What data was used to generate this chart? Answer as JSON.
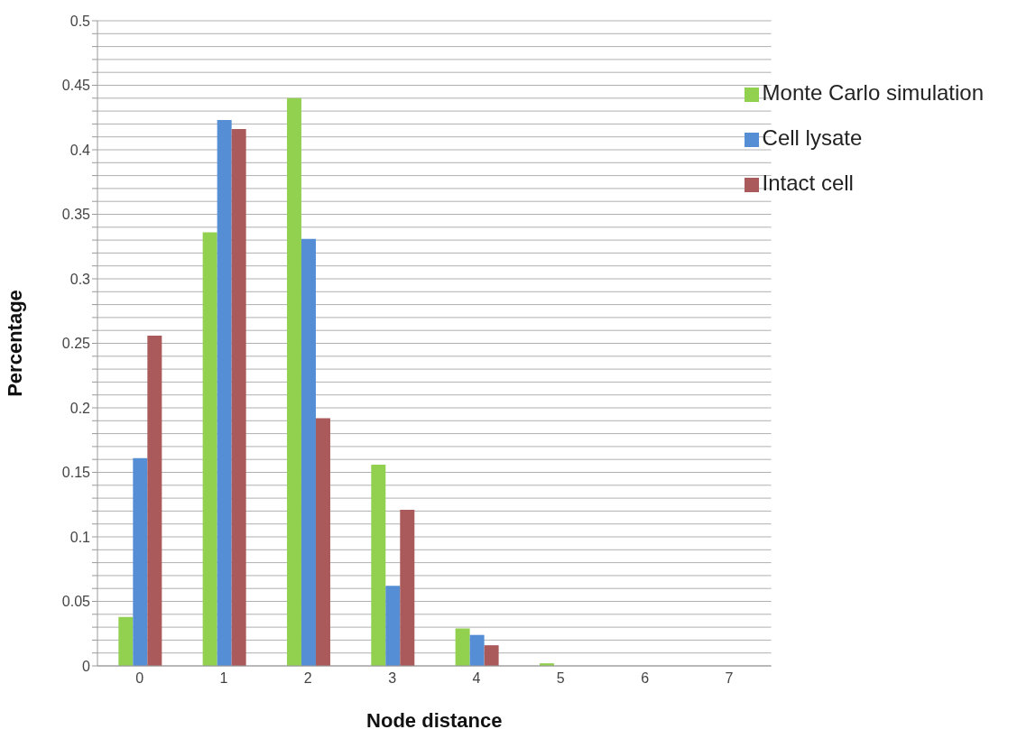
{
  "chart_data": {
    "type": "bar",
    "xlabel": "Node distance",
    "ylabel": "Percentage",
    "categories": [
      "0",
      "1",
      "2",
      "3",
      "4",
      "5",
      "6",
      "7"
    ],
    "series": [
      {
        "name": "Monte Carlo simulation",
        "color": "#92d050",
        "values": [
          0.038,
          0.336,
          0.44,
          0.156,
          0.029,
          0.002,
          0,
          0
        ]
      },
      {
        "name": "Cell lysate",
        "color": "#558ed5",
        "values": [
          0.161,
          0.423,
          0.331,
          0.062,
          0.024,
          0,
          0,
          0
        ]
      },
      {
        "name": "Intact cell",
        "color": "#aa5a5a",
        "values": [
          0.256,
          0.416,
          0.192,
          0.121,
          0.016,
          0,
          0,
          0
        ]
      }
    ],
    "ylim": [
      0,
      0.5
    ],
    "yticks": [
      0,
      {
        "value": 0.01,
        "label": null
      },
      {
        "value": 0.02,
        "label": null
      },
      {
        "value": 0.03,
        "label": null
      },
      {
        "value": 0.04,
        "label": null
      },
      0.05,
      {
        "value": 0.06,
        "label": null
      },
      {
        "value": 0.07,
        "label": null
      },
      {
        "value": 0.08,
        "label": null
      },
      {
        "value": 0.09,
        "label": null
      },
      0.1,
      {
        "value": 0.11,
        "label": null
      },
      {
        "value": 0.12,
        "label": null
      },
      {
        "value": 0.13,
        "label": null
      },
      {
        "value": 0.14,
        "label": null
      },
      0.15,
      {
        "value": 0.16,
        "label": null
      },
      {
        "value": 0.17,
        "label": null
      },
      {
        "value": 0.18,
        "label": null
      },
      {
        "value": 0.19,
        "label": null
      },
      0.2,
      {
        "value": 0.21,
        "label": null
      },
      {
        "value": 0.22,
        "label": null
      },
      {
        "value": 0.23,
        "label": null
      },
      {
        "value": 0.24,
        "label": null
      },
      0.25,
      {
        "value": 0.26,
        "label": null
      },
      {
        "value": 0.27,
        "label": null
      },
      {
        "value": 0.28,
        "label": null
      },
      {
        "value": 0.29,
        "label": null
      },
      0.3,
      {
        "value": 0.31,
        "label": null
      },
      {
        "value": 0.32,
        "label": null
      },
      {
        "value": 0.33,
        "label": null
      },
      {
        "value": 0.34,
        "label": null
      },
      0.35,
      {
        "value": 0.36,
        "label": null
      },
      {
        "value": 0.37,
        "label": null
      },
      {
        "value": 0.38,
        "label": null
      },
      {
        "value": 0.39,
        "label": null
      },
      0.4,
      {
        "value": 0.41,
        "label": null
      },
      {
        "value": 0.42,
        "label": null
      },
      {
        "value": 0.43,
        "label": null
      },
      {
        "value": 0.44,
        "label": null
      },
      0.45,
      {
        "value": 0.46,
        "label": null
      },
      {
        "value": 0.47,
        "label": null
      },
      {
        "value": 0.48,
        "label": null
      },
      {
        "value": 0.49,
        "label": null
      },
      0.5
    ],
    "grid": "y",
    "legend": "top right"
  }
}
